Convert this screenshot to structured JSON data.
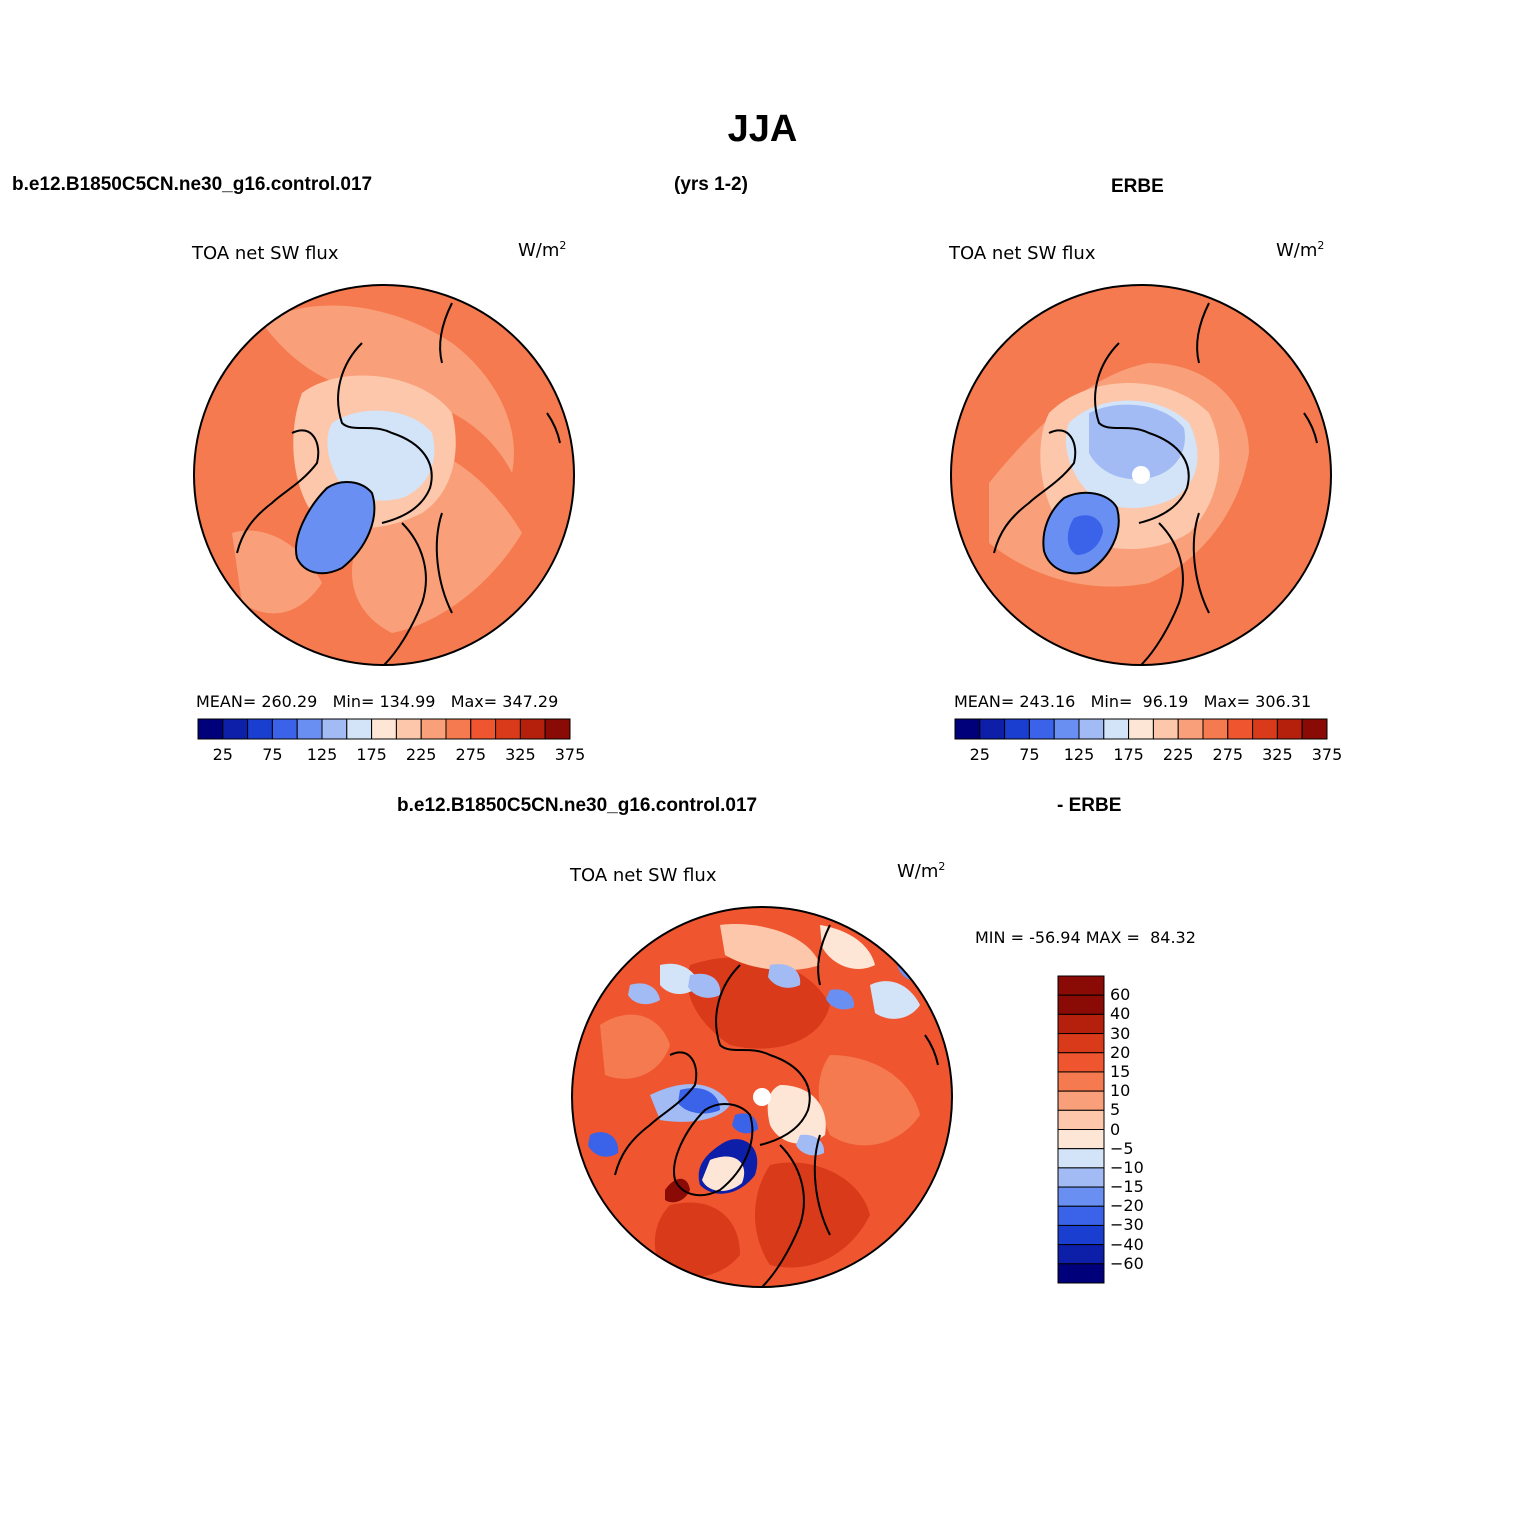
{
  "figure": {
    "title": "JJA",
    "case_name": "b.e12.B1850C5CN.ne30_g16.control.017",
    "years": "(yrs 1-2)",
    "obs_name": "ERBE",
    "diff_case": "b.e12.B1850C5CN.ne30_g16.control.017",
    "diff_suffix": "- ERBE"
  },
  "panels": {
    "model": {
      "variable": "TOA net SW flux",
      "units": "W/m",
      "units_sup": "2",
      "stats": "MEAN= 260.29   Min= 134.99   Max= 347.29",
      "stats_values": {
        "mean": 260.29,
        "min": 134.99,
        "max": 347.29
      }
    },
    "obs": {
      "variable": "TOA net SW flux",
      "units": "W/m",
      "units_sup": "2",
      "stats": "MEAN= 243.16   Min=  96.19   Max= 306.31",
      "stats_values": {
        "mean": 243.16,
        "min": 96.19,
        "max": 306.31
      }
    },
    "diff": {
      "variable": "TOA net SW flux",
      "units": "W/m",
      "units_sup": "2",
      "stats": "MIN = -56.94 MAX =  84.32",
      "stats_values": {
        "min": -56.94,
        "max": 84.32
      }
    }
  },
  "colorbars": {
    "abs": {
      "tick_labels": [
        "25",
        "75",
        "125",
        "175",
        "225",
        "275",
        "325",
        "375"
      ],
      "colors": [
        "#00007a",
        "#0d1ea8",
        "#1a3fd0",
        "#3a63ea",
        "#6a8ff2",
        "#a2bbf4",
        "#d4e4f8",
        "#fde6d6",
        "#fcc7aa",
        "#f9a07a",
        "#f57a50",
        "#ef5630",
        "#d93a1a",
        "#b5200c",
        "#8a0b05"
      ]
    },
    "diff": {
      "tick_labels": [
        "60",
        "40",
        "30",
        "20",
        "15",
        "10",
        "5",
        "0",
        "-5",
        "-10",
        "-15",
        "-20",
        "-30",
        "-40",
        "-60"
      ],
      "colors": [
        "#8a0b05",
        "#b5200c",
        "#d93a1a",
        "#ef5630",
        "#f57a50",
        "#f9a07a",
        "#fcc7aa",
        "#fde6d6",
        "#d4e4f8",
        "#a2bbf4",
        "#6a8ff2",
        "#3a63ea",
        "#1a3fd0",
        "#0d1ea8",
        "#00007a"
      ]
    }
  },
  "colors": {
    "warm_main": "#f57a50",
    "warm_light": "#fcc7aa",
    "cool_light": "#d4e4f8",
    "cool_mid": "#6a8ff2",
    "coastline": "#000000"
  }
}
